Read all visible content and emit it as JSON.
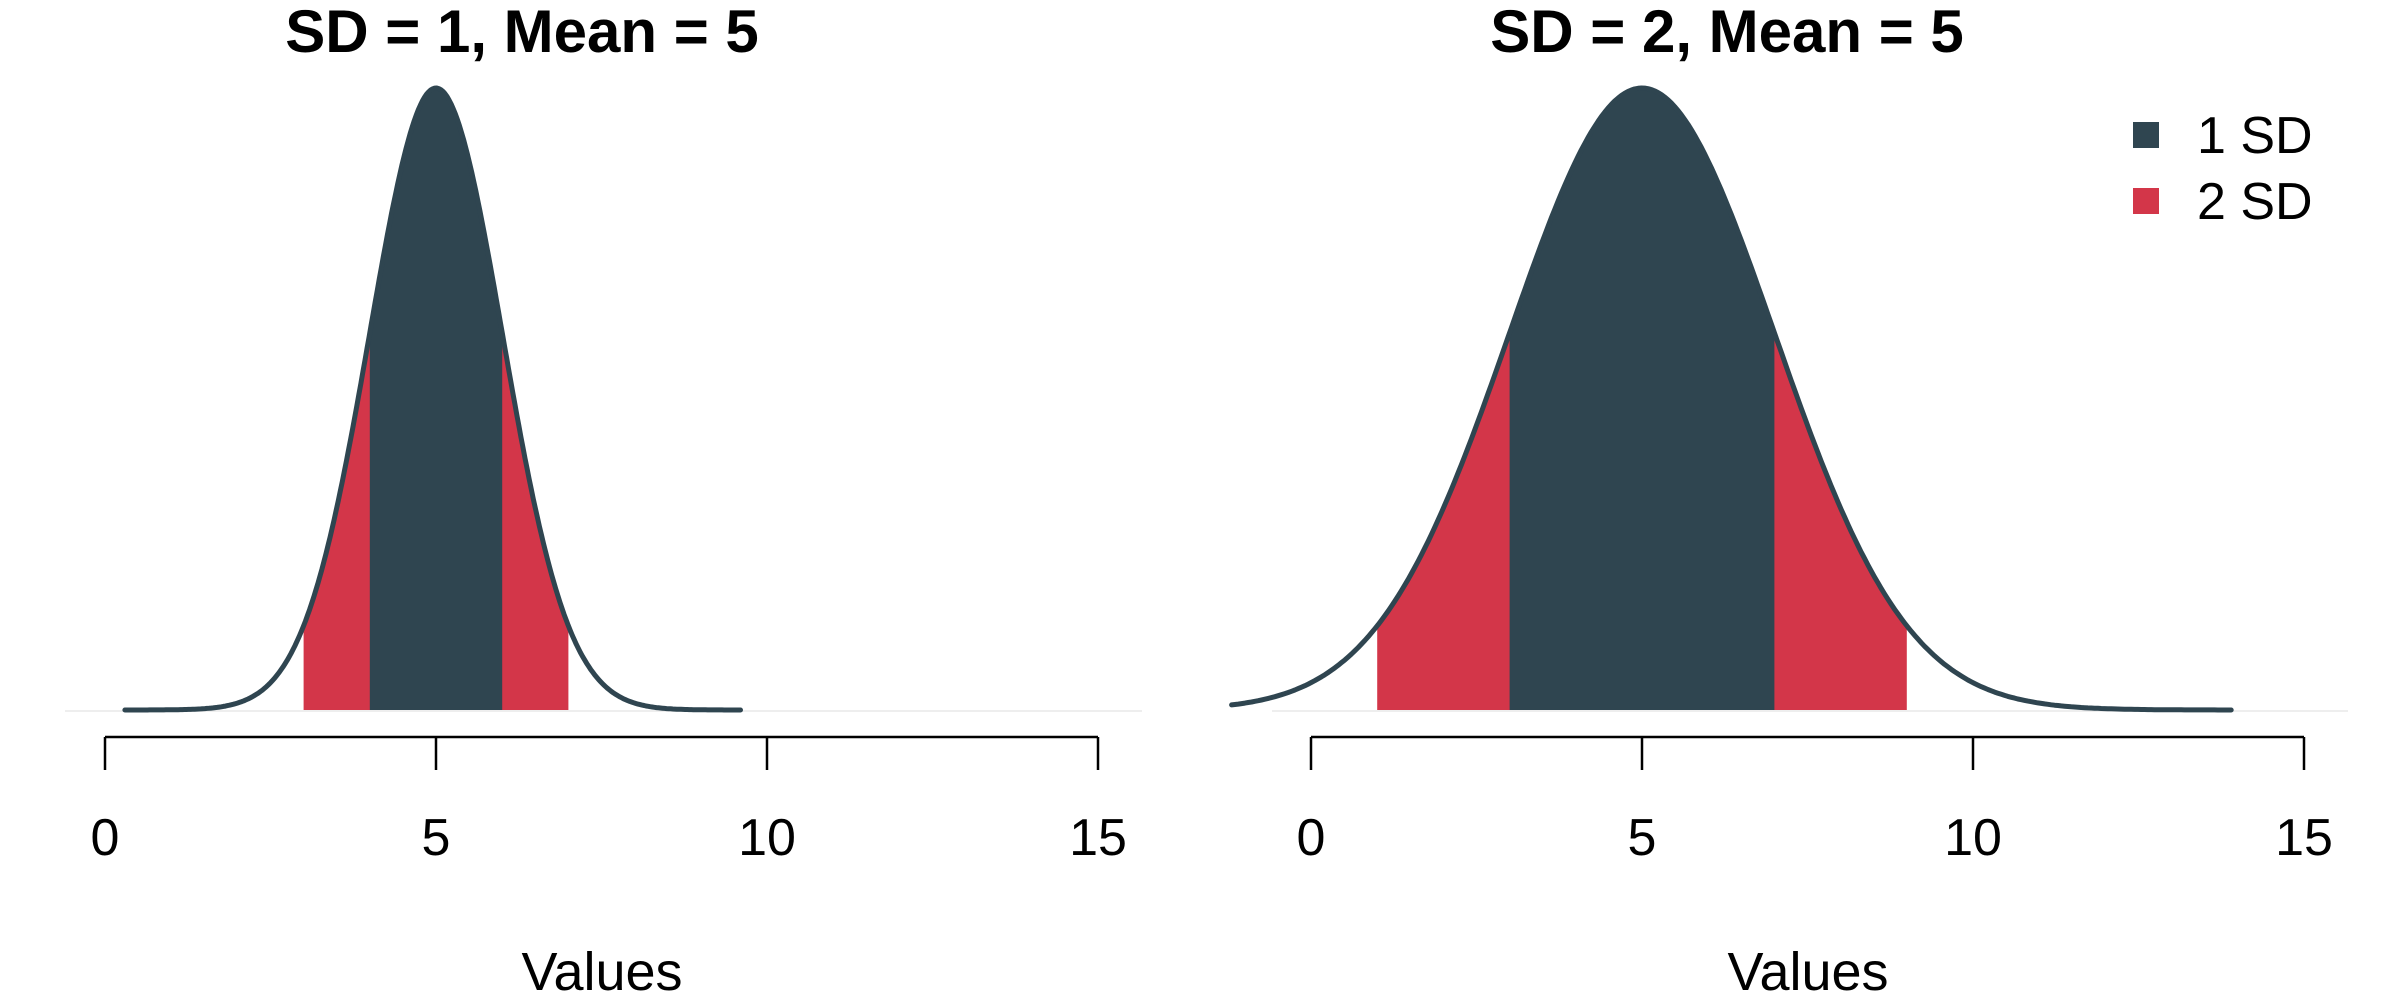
{
  "chart_data": [
    {
      "type": "area",
      "title": "SD = 1, Mean = 5",
      "xlabel": "Values",
      "ylabel": "",
      "xlim": [
        0,
        15
      ],
      "xticks": [
        0,
        5,
        10,
        15
      ],
      "mean": 5,
      "sd": 1,
      "data_range": [
        0.3,
        9.6
      ],
      "bands": [
        {
          "name": "2 SD",
          "from": 3,
          "to": 7,
          "color": "#d33649"
        },
        {
          "name": "1 SD",
          "from": 4,
          "to": 6,
          "color": "#2f4550"
        }
      ]
    },
    {
      "type": "area",
      "title": "SD = 2, Mean = 5",
      "xlabel": "Values",
      "ylabel": "",
      "xlim": [
        0,
        15
      ],
      "xticks": [
        0,
        5,
        10,
        15
      ],
      "mean": 5,
      "sd": 2,
      "data_range": [
        -1.2,
        13.9
      ],
      "bands": [
        {
          "name": "2 SD",
          "from": 1,
          "to": 9,
          "color": "#d33649"
        },
        {
          "name": "1 SD",
          "from": 3,
          "to": 7,
          "color": "#2f4550"
        }
      ]
    }
  ],
  "legend": {
    "placement": "top-right",
    "items": [
      {
        "label": "1 SD",
        "color": "#2f4550"
      },
      {
        "label": "2 SD",
        "color": "#d33649"
      }
    ]
  },
  "colors": {
    "outline": "#2f4550",
    "one_sd": "#2f4550",
    "two_sd": "#d33649"
  }
}
